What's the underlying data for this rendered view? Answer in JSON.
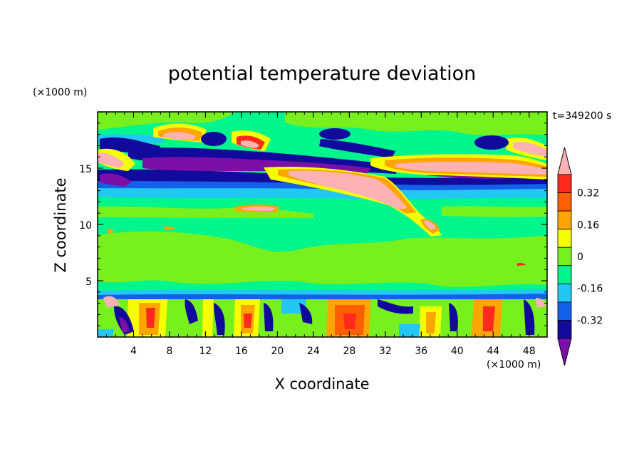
{
  "chart_data": {
    "type": "heatmap",
    "title": "potential temperature deviation",
    "xlabel": "X coordinate",
    "ylabel": "Z coordinate",
    "x_unit": "(×1000 m)",
    "y_unit": "(×1000 m)",
    "time_label": "t=349200 s",
    "xlim": [
      0,
      50
    ],
    "ylim": [
      0,
      20
    ],
    "x_ticks": [
      4,
      8,
      12,
      16,
      20,
      24,
      28,
      32,
      36,
      40,
      44,
      48
    ],
    "y_ticks": [
      5,
      10,
      15
    ],
    "colorbar": {
      "levels": [
        -0.4,
        -0.32,
        -0.24,
        -0.16,
        -0.08,
        0,
        0.08,
        0.16,
        0.24,
        0.32,
        0.4
      ],
      "tick_labels": [
        "0.32",
        "0.16",
        "0",
        "-0.16",
        "-0.32"
      ],
      "tick_values": [
        0.32,
        0.16,
        0,
        -0.16,
        -0.32
      ],
      "colors_low_to_high": [
        "#7b0fa8",
        "#120a9c",
        "#1460e8",
        "#22c8f2",
        "#00f58c",
        "#78f01e",
        "#f5ff00",
        "#ffa500",
        "#ff5f00",
        "#ff2a1e",
        "#ffb2b4"
      ],
      "extend": "both"
    },
    "features": [
      {
        "type": "band",
        "x": [
          0,
          50
        ],
        "z": [
          13.0,
          13.8
        ],
        "class": "cyan"
      },
      {
        "type": "band",
        "x": [
          0,
          50
        ],
        "z": [
          13.8,
          14.3
        ],
        "class": "blue"
      },
      {
        "type": "streak",
        "x": [
          5,
          30
        ],
        "z": [
          14.6,
          16.0
        ],
        "class": "purple"
      },
      {
        "type": "streak",
        "x": [
          20,
          38
        ],
        "z": [
          11.0,
          14.8
        ],
        "class": "pink"
      },
      {
        "type": "streak",
        "x": [
          30,
          50
        ],
        "z": [
          14.3,
          16.3
        ],
        "class": "pink"
      },
      {
        "type": "streak",
        "x": [
          8,
          20
        ],
        "z": [
          16.5,
          18.5
        ],
        "class": "warm"
      },
      {
        "type": "layer",
        "x": [
          0,
          50
        ],
        "z": [
          0,
          3.5
        ],
        "class": "mixed"
      }
    ]
  }
}
